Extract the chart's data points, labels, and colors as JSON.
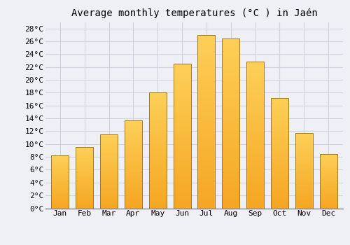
{
  "title": "Average monthly temperatures (°C ) in Jaén",
  "months": [
    "Jan",
    "Feb",
    "Mar",
    "Apr",
    "May",
    "Jun",
    "Jul",
    "Aug",
    "Sep",
    "Oct",
    "Nov",
    "Dec"
  ],
  "values": [
    8.2,
    9.5,
    11.5,
    13.7,
    18.0,
    22.5,
    27.0,
    26.4,
    22.8,
    17.2,
    11.7,
    8.5
  ],
  "bar_color_bottom": "#F5A623",
  "bar_color_top": "#FDD058",
  "bar_edge_color": "#A07820",
  "background_color": "#eef0f5",
  "plot_bg_color": "#eef0f5",
  "grid_color": "#d0d4de",
  "ylim": [
    0,
    29
  ],
  "ytick_step": 2,
  "title_fontsize": 10,
  "tick_fontsize": 8,
  "font_family": "monospace"
}
